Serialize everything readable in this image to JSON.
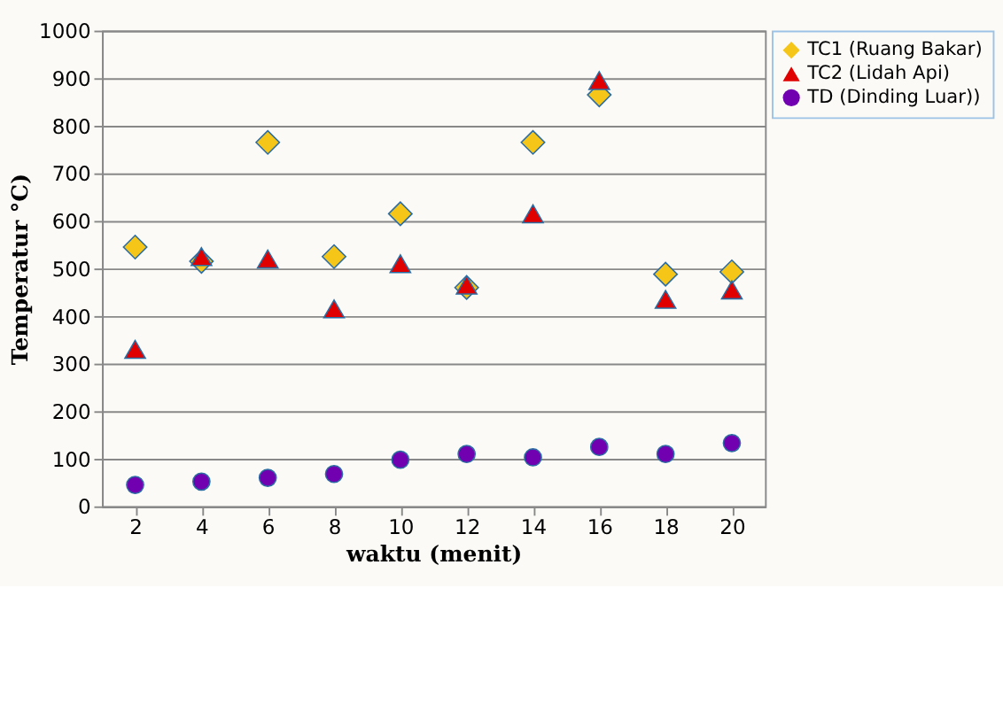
{
  "chart_data": {
    "type": "scatter",
    "xlabel": "waktu (menit)",
    "ylabel": "Temperatur °C)",
    "categories": [
      "2",
      "4",
      "6",
      "8",
      "10",
      "12",
      "14",
      "16",
      "18",
      "20"
    ],
    "series": [
      {
        "name": "TC1 (Ruang Bakar)",
        "color": "#f5c518",
        "marker": "diamond",
        "values": [
          545,
          515,
          765,
          525,
          615,
          460,
          765,
          865,
          488,
          493
        ]
      },
      {
        "name": "TC2 (Lidah Api)",
        "color": "#e00000",
        "marker": "triangle",
        "values": [
          330,
          525,
          520,
          415,
          510,
          465,
          615,
          895,
          435,
          455
        ]
      },
      {
        "name": "TD (Dinding Luar))",
        "color": "#7000b0",
        "marker": "circle",
        "values": [
          45,
          52,
          60,
          68,
          98,
          110,
          103,
          125,
          110,
          133
        ]
      }
    ],
    "ylim": [
      0,
      1000
    ],
    "yticks": [
      0,
      100,
      200,
      300,
      400,
      500,
      600,
      700,
      800,
      900,
      1000
    ],
    "grid": "y",
    "legend": "right"
  }
}
